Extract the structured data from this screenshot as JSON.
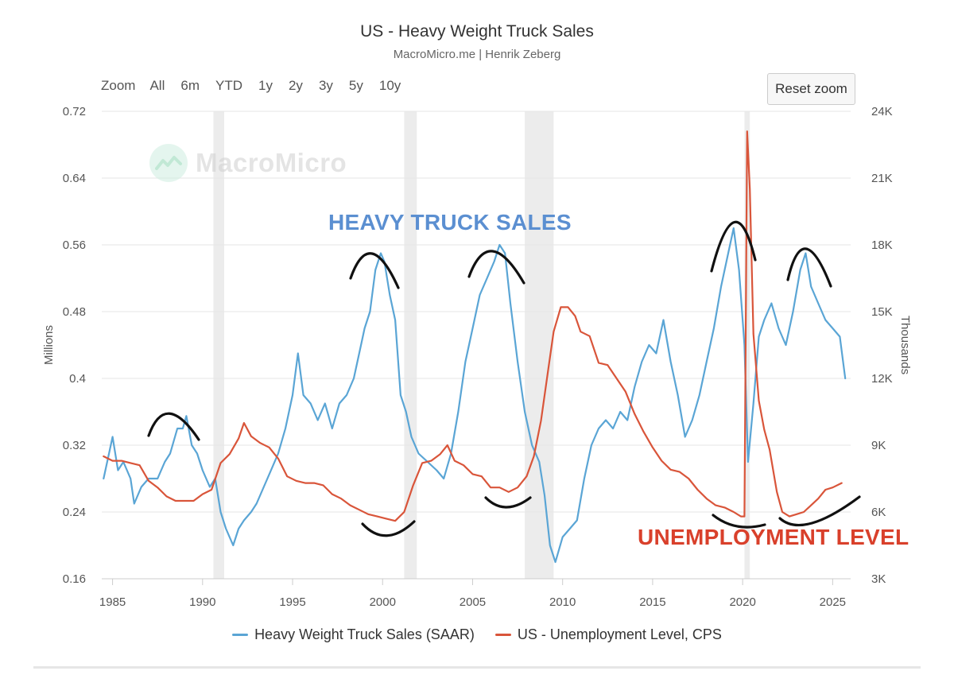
{
  "header": {
    "title": "US - Heavy Weight Truck Sales",
    "subtitle": "MacroMicro.me | Henrik Zeberg"
  },
  "range_selector": {
    "label": "Zoom",
    "buttons": [
      "All",
      "6m",
      "YTD",
      "1y",
      "2y",
      "3y",
      "5y",
      "10y"
    ]
  },
  "reset_zoom_label": "Reset zoom",
  "watermark": {
    "text": "MacroMicro",
    "icon": "macromicro-logo-icon"
  },
  "annotations": {
    "truck": "HEAVY TRUCK SALES",
    "unemployment": "UNEMPLOYMENT LEVEL"
  },
  "colors": {
    "truck": "#5aa5d5",
    "unemployment": "#d9553a",
    "recession": "#ececec",
    "sketch": "#111111"
  },
  "chart_data": {
    "type": "line",
    "xlim": [
      1984.4,
      2026.0
    ],
    "x_ticks": [
      1985,
      1990,
      1995,
      2000,
      2005,
      2010,
      2015,
      2020,
      2025
    ],
    "y_left": {
      "label": "Millions",
      "range": [
        0.16,
        0.72
      ],
      "ticks": [
        "0.16",
        "0.24",
        "0.32",
        "0.4",
        "0.48",
        "0.56",
        "0.64",
        "0.72"
      ]
    },
    "y_right": {
      "label": "Thousands",
      "range": [
        3,
        24
      ],
      "ticks": [
        "3K",
        "6K",
        "9K",
        "12K",
        "15K",
        "18K",
        "21K",
        "24K"
      ]
    },
    "grid": true,
    "legend_position": "bottom",
    "recessions": [
      [
        1990.6,
        1991.2
      ],
      [
        2001.2,
        2001.9
      ],
      [
        2007.9,
        2009.5
      ],
      [
        2020.1,
        2020.4
      ]
    ],
    "series": [
      {
        "name": "Heavy Weight Truck Sales (SAAR)",
        "axis": "left",
        "points": [
          [
            1984.5,
            0.28
          ],
          [
            1984.8,
            0.31
          ],
          [
            1985.0,
            0.33
          ],
          [
            1985.3,
            0.29
          ],
          [
            1985.6,
            0.3
          ],
          [
            1986.0,
            0.28
          ],
          [
            1986.2,
            0.25
          ],
          [
            1986.6,
            0.27
          ],
          [
            1987.0,
            0.28
          ],
          [
            1987.5,
            0.28
          ],
          [
            1987.9,
            0.3
          ],
          [
            1988.2,
            0.31
          ],
          [
            1988.6,
            0.34
          ],
          [
            1988.9,
            0.34
          ],
          [
            1989.1,
            0.355
          ],
          [
            1989.4,
            0.32
          ],
          [
            1989.7,
            0.31
          ],
          [
            1990.0,
            0.29
          ],
          [
            1990.4,
            0.27
          ],
          [
            1990.7,
            0.28
          ],
          [
            1991.0,
            0.24
          ],
          [
            1991.3,
            0.22
          ],
          [
            1991.7,
            0.2
          ],
          [
            1992.0,
            0.22
          ],
          [
            1992.3,
            0.23
          ],
          [
            1992.7,
            0.24
          ],
          [
            1993.0,
            0.25
          ],
          [
            1993.4,
            0.27
          ],
          [
            1993.8,
            0.29
          ],
          [
            1994.2,
            0.31
          ],
          [
            1994.6,
            0.34
          ],
          [
            1995.0,
            0.38
          ],
          [
            1995.3,
            0.43
          ],
          [
            1995.6,
            0.38
          ],
          [
            1996.0,
            0.37
          ],
          [
            1996.4,
            0.35
          ],
          [
            1996.8,
            0.37
          ],
          [
            1997.2,
            0.34
          ],
          [
            1997.6,
            0.37
          ],
          [
            1998.0,
            0.38
          ],
          [
            1998.4,
            0.4
          ],
          [
            1998.8,
            0.44
          ],
          [
            1999.0,
            0.46
          ],
          [
            1999.3,
            0.48
          ],
          [
            1999.6,
            0.53
          ],
          [
            1999.9,
            0.55
          ],
          [
            2000.1,
            0.54
          ],
          [
            2000.4,
            0.5
          ],
          [
            2000.7,
            0.47
          ],
          [
            2001.0,
            0.38
          ],
          [
            2001.3,
            0.36
          ],
          [
            2001.6,
            0.33
          ],
          [
            2002.0,
            0.31
          ],
          [
            2002.5,
            0.3
          ],
          [
            2003.0,
            0.29
          ],
          [
            2003.4,
            0.28
          ],
          [
            2003.8,
            0.31
          ],
          [
            2004.2,
            0.36
          ],
          [
            2004.6,
            0.42
          ],
          [
            2005.0,
            0.46
          ],
          [
            2005.4,
            0.5
          ],
          [
            2005.8,
            0.52
          ],
          [
            2006.2,
            0.54
          ],
          [
            2006.5,
            0.56
          ],
          [
            2006.8,
            0.55
          ],
          [
            2007.1,
            0.49
          ],
          [
            2007.5,
            0.42
          ],
          [
            2007.9,
            0.36
          ],
          [
            2008.3,
            0.32
          ],
          [
            2008.7,
            0.3
          ],
          [
            2009.0,
            0.26
          ],
          [
            2009.3,
            0.2
          ],
          [
            2009.6,
            0.18
          ],
          [
            2010.0,
            0.21
          ],
          [
            2010.4,
            0.22
          ],
          [
            2010.8,
            0.23
          ],
          [
            2011.2,
            0.28
          ],
          [
            2011.6,
            0.32
          ],
          [
            2012.0,
            0.34
          ],
          [
            2012.4,
            0.35
          ],
          [
            2012.8,
            0.34
          ],
          [
            2013.2,
            0.36
          ],
          [
            2013.6,
            0.35
          ],
          [
            2014.0,
            0.39
          ],
          [
            2014.4,
            0.42
          ],
          [
            2014.8,
            0.44
          ],
          [
            2015.2,
            0.43
          ],
          [
            2015.6,
            0.47
          ],
          [
            2016.0,
            0.42
          ],
          [
            2016.4,
            0.38
          ],
          [
            2016.8,
            0.33
          ],
          [
            2017.2,
            0.35
          ],
          [
            2017.6,
            0.38
          ],
          [
            2018.0,
            0.42
          ],
          [
            2018.4,
            0.46
          ],
          [
            2018.8,
            0.51
          ],
          [
            2019.2,
            0.55
          ],
          [
            2019.5,
            0.58
          ],
          [
            2019.8,
            0.53
          ],
          [
            2020.1,
            0.44
          ],
          [
            2020.3,
            0.3
          ],
          [
            2020.6,
            0.37
          ],
          [
            2020.9,
            0.45
          ],
          [
            2021.2,
            0.47
          ],
          [
            2021.6,
            0.49
          ],
          [
            2022.0,
            0.46
          ],
          [
            2022.4,
            0.44
          ],
          [
            2022.8,
            0.48
          ],
          [
            2023.2,
            0.53
          ],
          [
            2023.5,
            0.55
          ],
          [
            2023.8,
            0.51
          ],
          [
            2024.2,
            0.49
          ],
          [
            2024.6,
            0.47
          ],
          [
            2025.0,
            0.46
          ],
          [
            2025.4,
            0.45
          ],
          [
            2025.7,
            0.4
          ]
        ]
      },
      {
        "name": "US - Unemployment Level, CPS",
        "axis": "right",
        "points": [
          [
            1984.5,
            8.5
          ],
          [
            1985.0,
            8.3
          ],
          [
            1985.5,
            8.3
          ],
          [
            1986.0,
            8.2
          ],
          [
            1986.5,
            8.1
          ],
          [
            1987.0,
            7.4
          ],
          [
            1987.5,
            7.1
          ],
          [
            1988.0,
            6.7
          ],
          [
            1988.5,
            6.5
          ],
          [
            1989.0,
            6.5
          ],
          [
            1989.5,
            6.5
          ],
          [
            1990.0,
            6.8
          ],
          [
            1990.5,
            7.0
          ],
          [
            1991.0,
            8.2
          ],
          [
            1991.5,
            8.6
          ],
          [
            1992.0,
            9.3
          ],
          [
            1992.3,
            10.0
          ],
          [
            1992.7,
            9.4
          ],
          [
            1993.2,
            9.1
          ],
          [
            1993.7,
            8.9
          ],
          [
            1994.2,
            8.4
          ],
          [
            1994.7,
            7.6
          ],
          [
            1995.2,
            7.4
          ],
          [
            1995.7,
            7.3
          ],
          [
            1996.2,
            7.3
          ],
          [
            1996.7,
            7.2
          ],
          [
            1997.2,
            6.8
          ],
          [
            1997.7,
            6.6
          ],
          [
            1998.2,
            6.3
          ],
          [
            1998.7,
            6.1
          ],
          [
            1999.2,
            5.9
          ],
          [
            1999.7,
            5.8
          ],
          [
            2000.2,
            5.7
          ],
          [
            2000.7,
            5.6
          ],
          [
            2001.2,
            6.0
          ],
          [
            2001.7,
            7.2
          ],
          [
            2002.2,
            8.2
          ],
          [
            2002.7,
            8.3
          ],
          [
            2003.2,
            8.6
          ],
          [
            2003.6,
            9.0
          ],
          [
            2004.0,
            8.3
          ],
          [
            2004.5,
            8.1
          ],
          [
            2005.0,
            7.7
          ],
          [
            2005.5,
            7.6
          ],
          [
            2006.0,
            7.1
          ],
          [
            2006.5,
            7.1
          ],
          [
            2007.0,
            6.9
          ],
          [
            2007.5,
            7.1
          ],
          [
            2008.0,
            7.6
          ],
          [
            2008.4,
            8.5
          ],
          [
            2008.8,
            10.1
          ],
          [
            2009.2,
            12.4
          ],
          [
            2009.5,
            14.1
          ],
          [
            2009.9,
            15.2
          ],
          [
            2010.3,
            15.2
          ],
          [
            2010.7,
            14.8
          ],
          [
            2011.0,
            14.1
          ],
          [
            2011.5,
            13.9
          ],
          [
            2012.0,
            12.7
          ],
          [
            2012.5,
            12.6
          ],
          [
            2013.0,
            12.0
          ],
          [
            2013.5,
            11.4
          ],
          [
            2014.0,
            10.4
          ],
          [
            2014.5,
            9.6
          ],
          [
            2015.0,
            8.9
          ],
          [
            2015.5,
            8.3
          ],
          [
            2016.0,
            7.9
          ],
          [
            2016.5,
            7.8
          ],
          [
            2017.0,
            7.5
          ],
          [
            2017.5,
            7.0
          ],
          [
            2018.0,
            6.6
          ],
          [
            2018.5,
            6.3
          ],
          [
            2019.0,
            6.2
          ],
          [
            2019.5,
            6.0
          ],
          [
            2019.9,
            5.8
          ],
          [
            2020.1,
            5.8
          ],
          [
            2020.25,
            23.1
          ],
          [
            2020.4,
            20.5
          ],
          [
            2020.6,
            14.0
          ],
          [
            2020.9,
            11.0
          ],
          [
            2021.2,
            9.7
          ],
          [
            2021.5,
            8.8
          ],
          [
            2021.9,
            6.9
          ],
          [
            2022.2,
            6.0
          ],
          [
            2022.6,
            5.8
          ],
          [
            2023.0,
            5.9
          ],
          [
            2023.4,
            6.0
          ],
          [
            2023.8,
            6.3
          ],
          [
            2024.2,
            6.6
          ],
          [
            2024.6,
            7.0
          ],
          [
            2025.0,
            7.1
          ],
          [
            2025.5,
            7.3
          ]
        ]
      }
    ]
  }
}
